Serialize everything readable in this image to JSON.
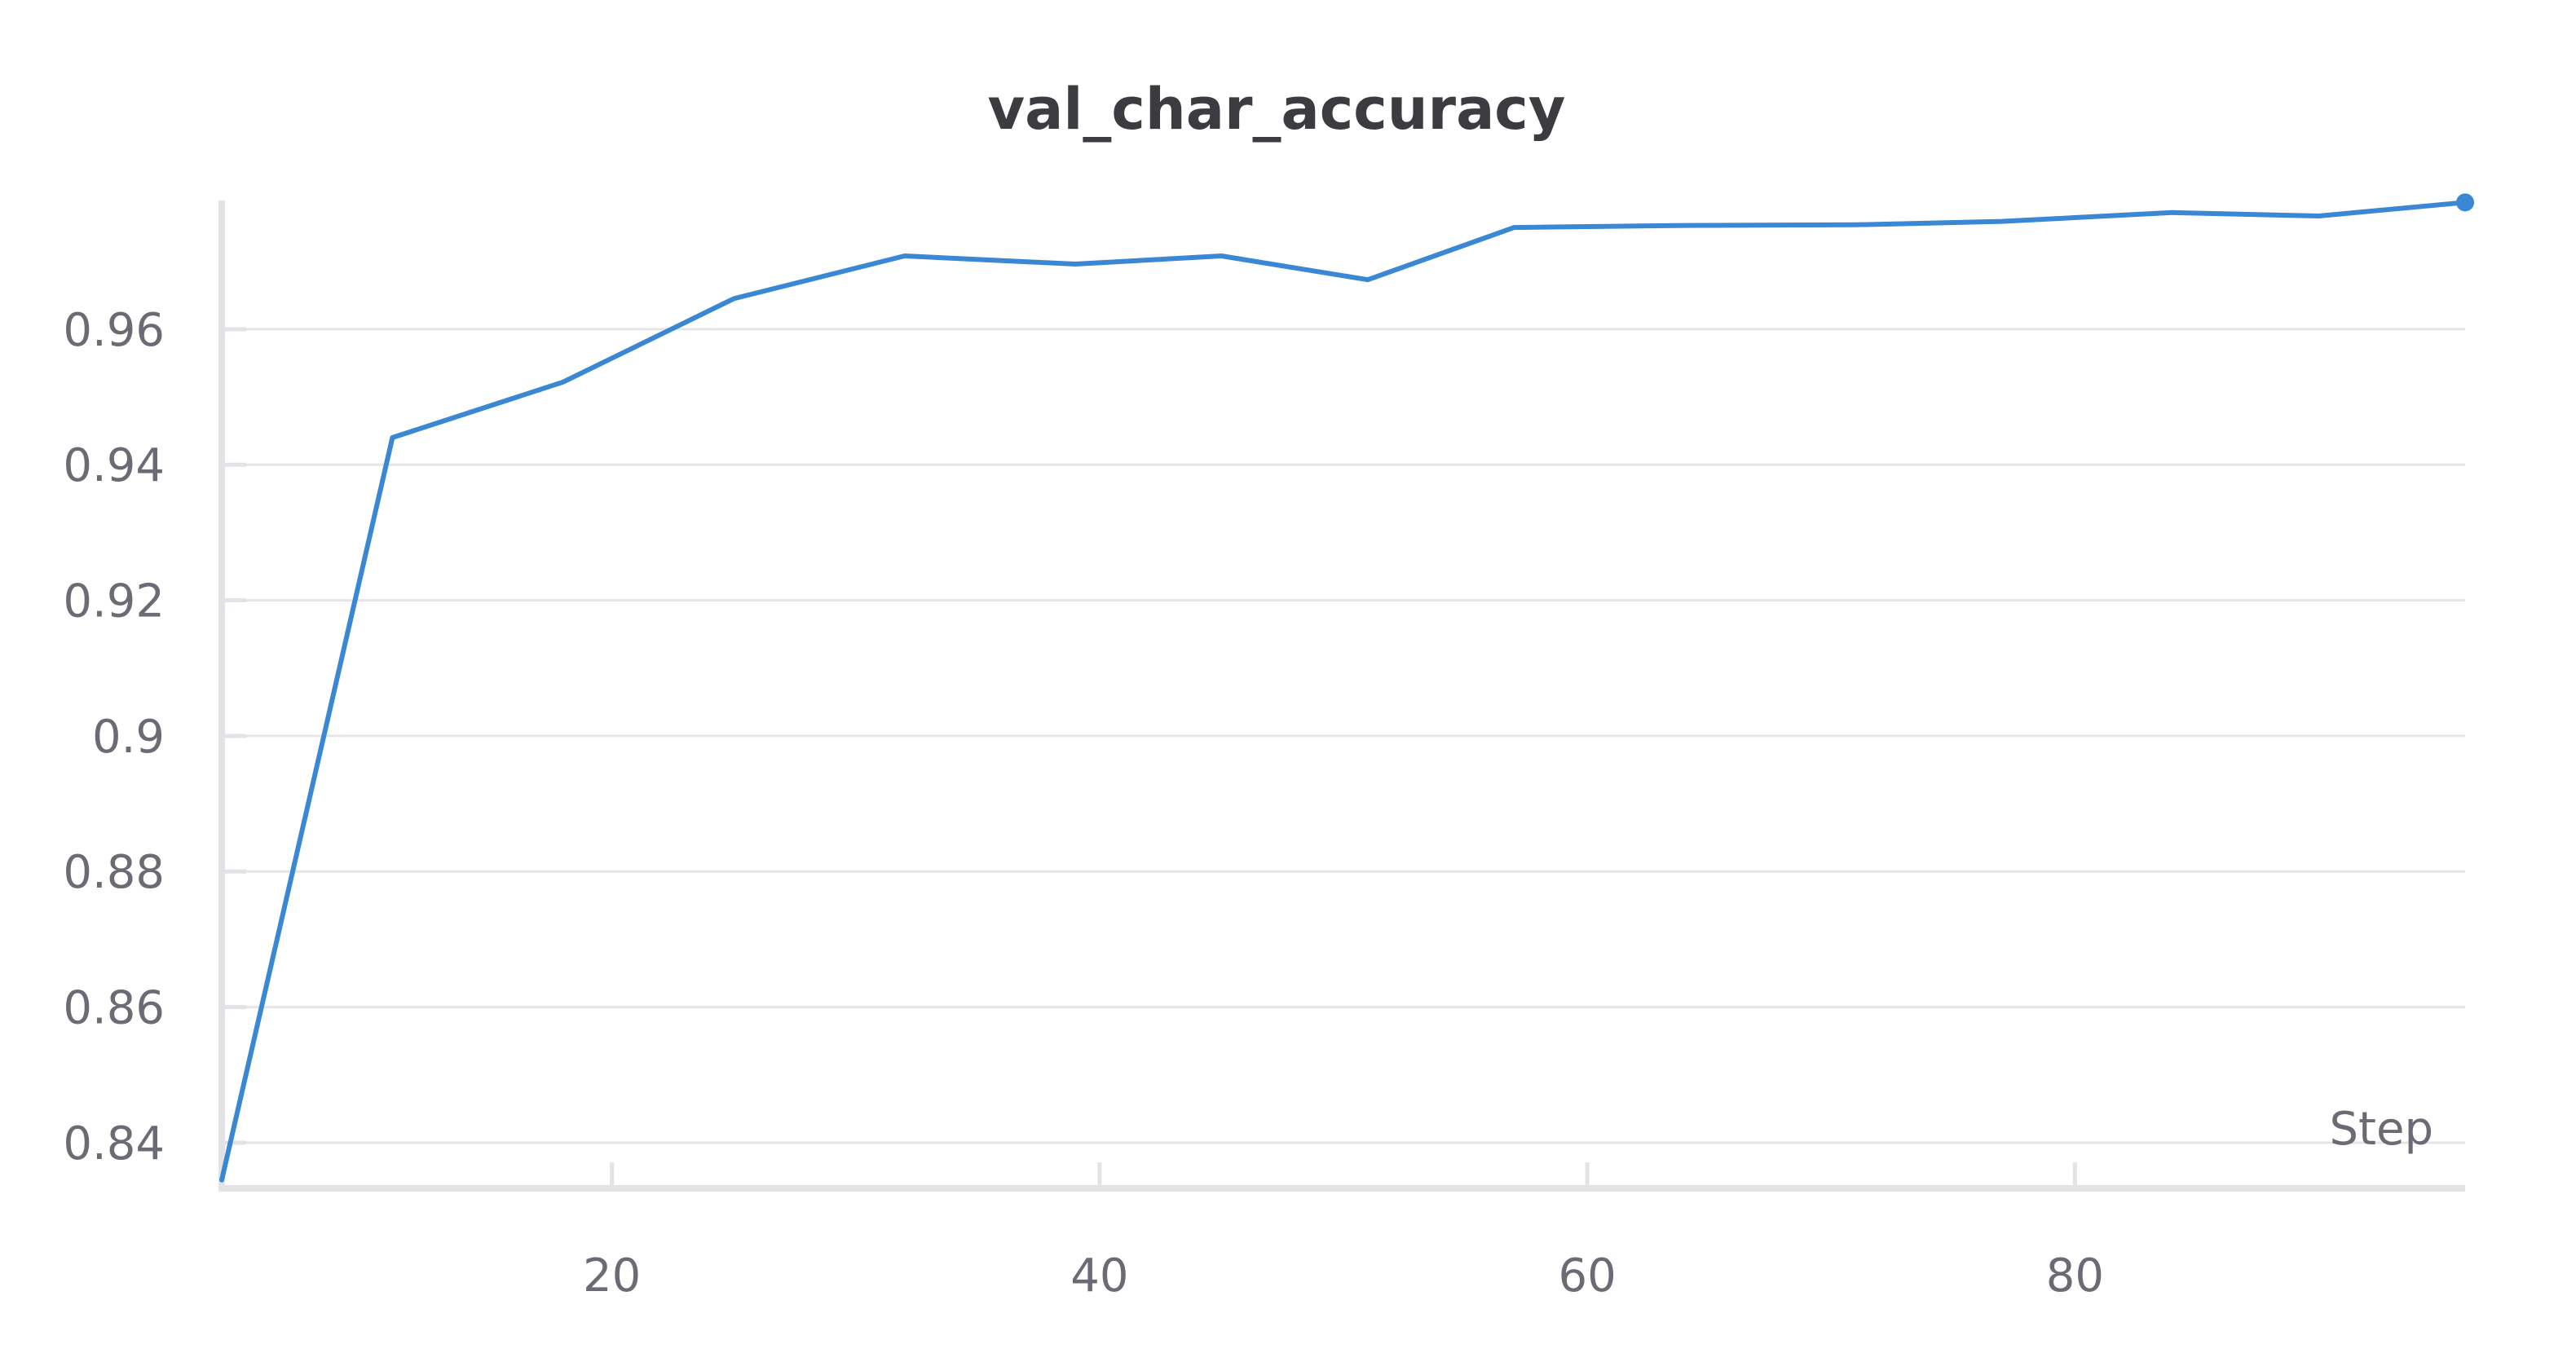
{
  "chart_data": {
    "type": "line",
    "title": "val_char_accuracy",
    "xlabel": "Step",
    "ylabel": "",
    "xlim": [
      4,
      96
    ],
    "ylim": [
      0.8335,
      0.9785
    ],
    "x_ticks": [
      20,
      40,
      60,
      80
    ],
    "x_tick_labels": [
      "20",
      "40",
      "60",
      "80"
    ],
    "y_ticks": [
      0.84,
      0.86,
      0.88,
      0.9,
      0.92,
      0.94,
      0.96
    ],
    "y_tick_labels": [
      "0.84",
      "0.86",
      "0.88",
      "0.9",
      "0.92",
      "0.94",
      "0.96"
    ],
    "grid": "horizontal",
    "line_color": "#3a87d4",
    "series": [
      {
        "x": [
          4,
          11,
          18,
          25,
          32,
          39,
          45,
          51,
          57,
          64,
          71,
          77,
          84,
          90,
          96
        ],
        "y": [
          0.8345,
          0.944,
          0.9522,
          0.9645,
          0.9708,
          0.9696,
          0.9708,
          0.9673,
          0.975,
          0.9753,
          0.9754,
          0.9759,
          0.9772,
          0.9767,
          0.9787
        ]
      }
    ]
  }
}
